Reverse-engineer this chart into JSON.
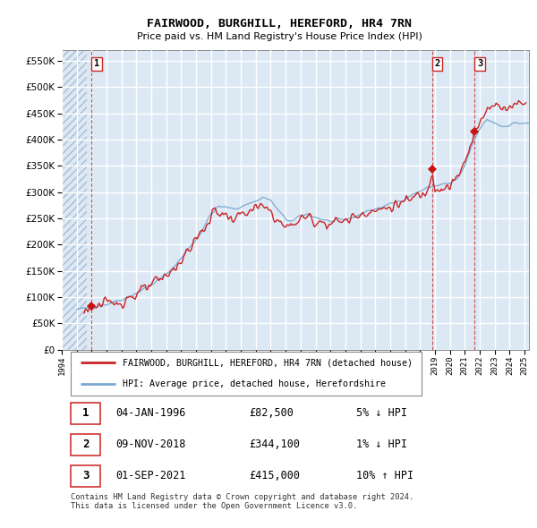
{
  "title": "FAIRWOOD, BURGHILL, HEREFORD, HR4 7RN",
  "subtitle": "Price paid vs. HM Land Registry's House Price Index (HPI)",
  "ylim": [
    0,
    570000
  ],
  "yticks": [
    0,
    50000,
    100000,
    150000,
    200000,
    250000,
    300000,
    350000,
    400000,
    450000,
    500000,
    550000
  ],
  "xlim_start": 1994.0,
  "xlim_end": 2025.3,
  "bg_color": "#dce9f5",
  "legend_label_red": "FAIRWOOD, BURGHILL, HEREFORD, HR4 7RN (detached house)",
  "legend_label_blue": "HPI: Average price, detached house, Herefordshire",
  "footer": "Contains HM Land Registry data © Crown copyright and database right 2024.\nThis data is licensed under the Open Government Licence v3.0.",
  "transactions": [
    {
      "num": 1,
      "date": "04-JAN-1996",
      "price": 82500,
      "pct": "5%",
      "dir": "↓",
      "year": 1996.0
    },
    {
      "num": 2,
      "date": "09-NOV-2018",
      "price": 344100,
      "pct": "1%",
      "dir": "↓",
      "year": 2018.83
    },
    {
      "num": 3,
      "date": "01-SEP-2021",
      "price": 415000,
      "pct": "10%",
      "dir": "↑",
      "year": 2021.67
    }
  ]
}
